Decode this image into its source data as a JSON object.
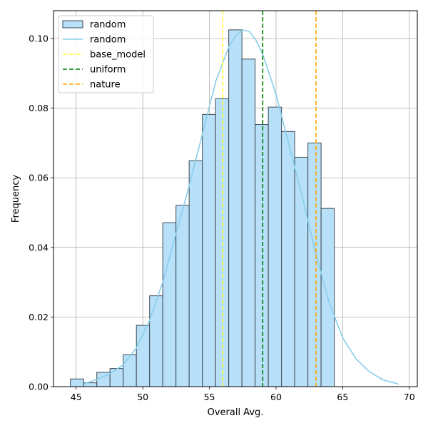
{
  "chart_data": {
    "type": "bar",
    "xlabel": "Overall Avg.",
    "ylabel": "Frequency",
    "xlim": [
      43.3,
      70.6
    ],
    "ylim": [
      0,
      0.108
    ],
    "grid": true,
    "legend_position": "top-left",
    "x_ticks": [
      45,
      50,
      55,
      60,
      65,
      70
    ],
    "x_tick_labels": [
      "45",
      "50",
      "55",
      "60",
      "65",
      "70"
    ],
    "y_ticks": [
      0,
      0.02,
      0.04,
      0.06,
      0.08,
      0.1
    ],
    "y_tick_labels": [
      "0.00",
      "0.02",
      "0.04",
      "0.06",
      "0.08",
      "0.10"
    ],
    "histogram": {
      "name": "random",
      "bin_width": 0.99,
      "bin_starts": [
        44.57,
        45.56,
        46.55,
        47.54,
        48.53,
        49.52,
        50.51,
        51.5,
        52.49,
        53.48,
        54.47,
        55.46,
        56.45,
        57.44,
        58.43,
        59.42,
        60.41,
        61.4,
        62.39,
        63.38
      ],
      "values": [
        0.0022,
        0.0011,
        0.0041,
        0.0052,
        0.0092,
        0.0176,
        0.0261,
        0.0471,
        0.0521,
        0.0649,
        0.0782,
        0.0827,
        0.1025,
        0.0941,
        0.0753,
        0.0803,
        0.0733,
        0.0659,
        0.07,
        0.0512
      ],
      "color": "#b8e0f8",
      "edge_color": "#3d4a55"
    },
    "kde": {
      "name": "random",
      "color": "#87ceeb",
      "x": [
        45.6,
        46.5,
        47.5,
        48.5,
        49.5,
        50.5,
        51.5,
        52.5,
        53.5,
        54.5,
        55.5,
        56.5,
        57.0,
        57.5,
        58.0,
        58.5,
        59.0,
        60.0,
        61.0,
        62.0,
        63.0,
        64.0,
        65.0,
        66.0,
        67.0,
        68.0,
        69.2
      ],
      "y": [
        0.0008,
        0.002,
        0.0036,
        0.0062,
        0.011,
        0.019,
        0.03,
        0.044,
        0.058,
        0.073,
        0.088,
        0.098,
        0.101,
        0.1025,
        0.102,
        0.0995,
        0.0955,
        0.084,
        0.069,
        0.054,
        0.038,
        0.024,
        0.014,
        0.008,
        0.0043,
        0.002,
        0.0007
      ]
    },
    "vlines": [
      {
        "name": "base_model",
        "x": 56.0,
        "color": "#ffff33"
      },
      {
        "name": "uniform",
        "x": 59.0,
        "color": "#008000"
      },
      {
        "name": "nature",
        "x": 63.0,
        "color": "#ffa500"
      }
    ]
  }
}
